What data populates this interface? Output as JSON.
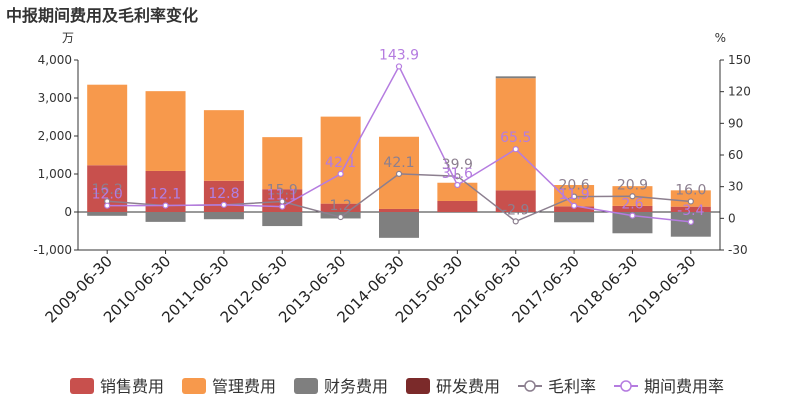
{
  "chart_data": {
    "type": "bar",
    "title": "中报期间费用及毛利率变化",
    "left_unit": "万",
    "right_unit": "%",
    "categories": [
      "2009-06-30",
      "2010-06-30",
      "2011-06-30",
      "2012-06-30",
      "2013-06-30",
      "2014-06-30",
      "2015-06-30",
      "2016-06-30",
      "2017-06-30",
      "2018-06-30",
      "2019-06-30"
    ],
    "left_ylim": [
      -1000,
      4000
    ],
    "left_ticks": [
      "-1,000",
      "0",
      "1,000",
      "2,000",
      "3,000",
      "4,000"
    ],
    "right_ylim": [
      -30,
      150
    ],
    "right_ticks": [
      "-30",
      "0",
      "30",
      "60",
      "90",
      "120",
      "150"
    ],
    "grid": false,
    "legend_position": "bottom",
    "bar_series": [
      {
        "name": "销售费用",
        "color": "#c8504d",
        "values": [
          1230,
          1080,
          820,
          600,
          220,
          80,
          290,
          570,
          150,
          160,
          140
        ]
      },
      {
        "name": "管理费用",
        "color": "#f7994c",
        "values": [
          2120,
          2100,
          1860,
          1370,
          2290,
          1900,
          480,
          2950,
          560,
          520,
          430
        ]
      },
      {
        "name": "财务费用",
        "color": "#7f7f7f",
        "values": [
          -100,
          -260,
          -190,
          -370,
          -170,
          -680,
          0,
          50,
          -270,
          -560,
          -650
        ]
      },
      {
        "name": "研发费用",
        "color": "#7b2a2a",
        "values": [
          0,
          0,
          0,
          0,
          0,
          0,
          0,
          0,
          0,
          0,
          0
        ]
      }
    ],
    "line_series": [
      {
        "name": "毛利率",
        "color": "#8c7f8f",
        "values": [
          16.2,
          12.1,
          12.8,
          15.9,
          1.2,
          42.1,
          39.9,
          -2.9,
          20.6,
          20.9,
          16.0
        ],
        "labels": [
          "16.2",
          "12.1",
          "12.8",
          "15.9",
          "1.2",
          "42.1",
          "39.9",
          "-2.9",
          "20.6",
          "20.9",
          "16.0"
        ]
      },
      {
        "name": "期间费用率",
        "color": "#b57ce0",
        "values": [
          12.0,
          12.1,
          12.8,
          11.1,
          42.1,
          143.9,
          31.6,
          65.5,
          11.9,
          2.6,
          -3.4
        ],
        "labels": [
          "12.0",
          "12.1",
          "12.8",
          "11.1",
          "42.1",
          "143.9",
          "31.6",
          "65.5",
          "11.9",
          "2.6",
          "-3.4"
        ]
      }
    ]
  }
}
